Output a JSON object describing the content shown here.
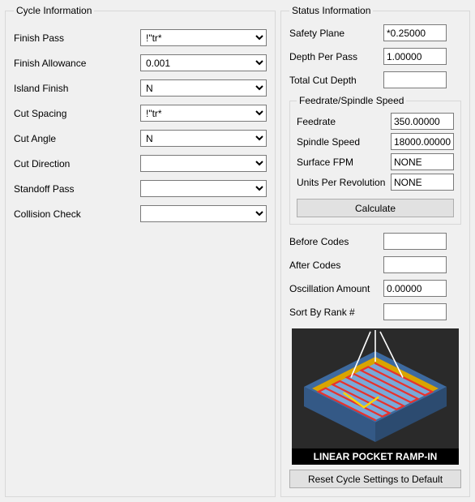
{
  "cycle": {
    "legend": "Cycle Information",
    "rows": [
      {
        "label": "Finish Pass",
        "value": "!\"tr*"
      },
      {
        "label": "Finish Allowance",
        "value": "0.001"
      },
      {
        "label": "Island Finish",
        "value": "N"
      },
      {
        "label": "Cut Spacing",
        "value": "!\"tr*"
      },
      {
        "label": "Cut Angle",
        "value": "N"
      },
      {
        "label": "Cut Direction",
        "value": ""
      },
      {
        "label": "Standoff Pass",
        "value": ""
      },
      {
        "label": "Collision Check",
        "value": ""
      }
    ]
  },
  "status": {
    "legend": "Status Information",
    "top": [
      {
        "label": "Safety Plane",
        "value": "*0.25000"
      },
      {
        "label": "Depth Per Pass",
        "value": "1.00000"
      },
      {
        "label": "Total Cut Depth",
        "value": ""
      }
    ],
    "feed": {
      "legend": "Feedrate/Spindle Speed",
      "rows": [
        {
          "label": "Feedrate",
          "value": "350.00000"
        },
        {
          "label": "Spindle Speed",
          "value": "18000.00000"
        },
        {
          "label": "Surface FPM",
          "value": "NONE"
        },
        {
          "label": "Units Per Revolution",
          "value": "NONE"
        }
      ],
      "calc_label": "Calculate"
    },
    "bottom": [
      {
        "label": "Before Codes",
        "value": ""
      },
      {
        "label": "After Codes",
        "value": ""
      },
      {
        "label": "Oscillation Amount",
        "value": "0.00000"
      },
      {
        "label": "Sort By Rank #",
        "value": ""
      }
    ],
    "reset_label": "Reset Cycle Settings to Default"
  },
  "diagram": {
    "caption": "LINEAR POCKET RAMP-IN",
    "colors": {
      "bg": "#2a2a2a",
      "band": "#000000",
      "text": "#ffffff",
      "block_top": "#3d6aa0",
      "block_side_l": "#345986",
      "block_side_r": "#2c4b70",
      "floor": "#7aa8d8",
      "rim": "#d9a400",
      "raster": "#e8322d",
      "lead": "#ffd400",
      "highlight": "#ffffff"
    }
  }
}
